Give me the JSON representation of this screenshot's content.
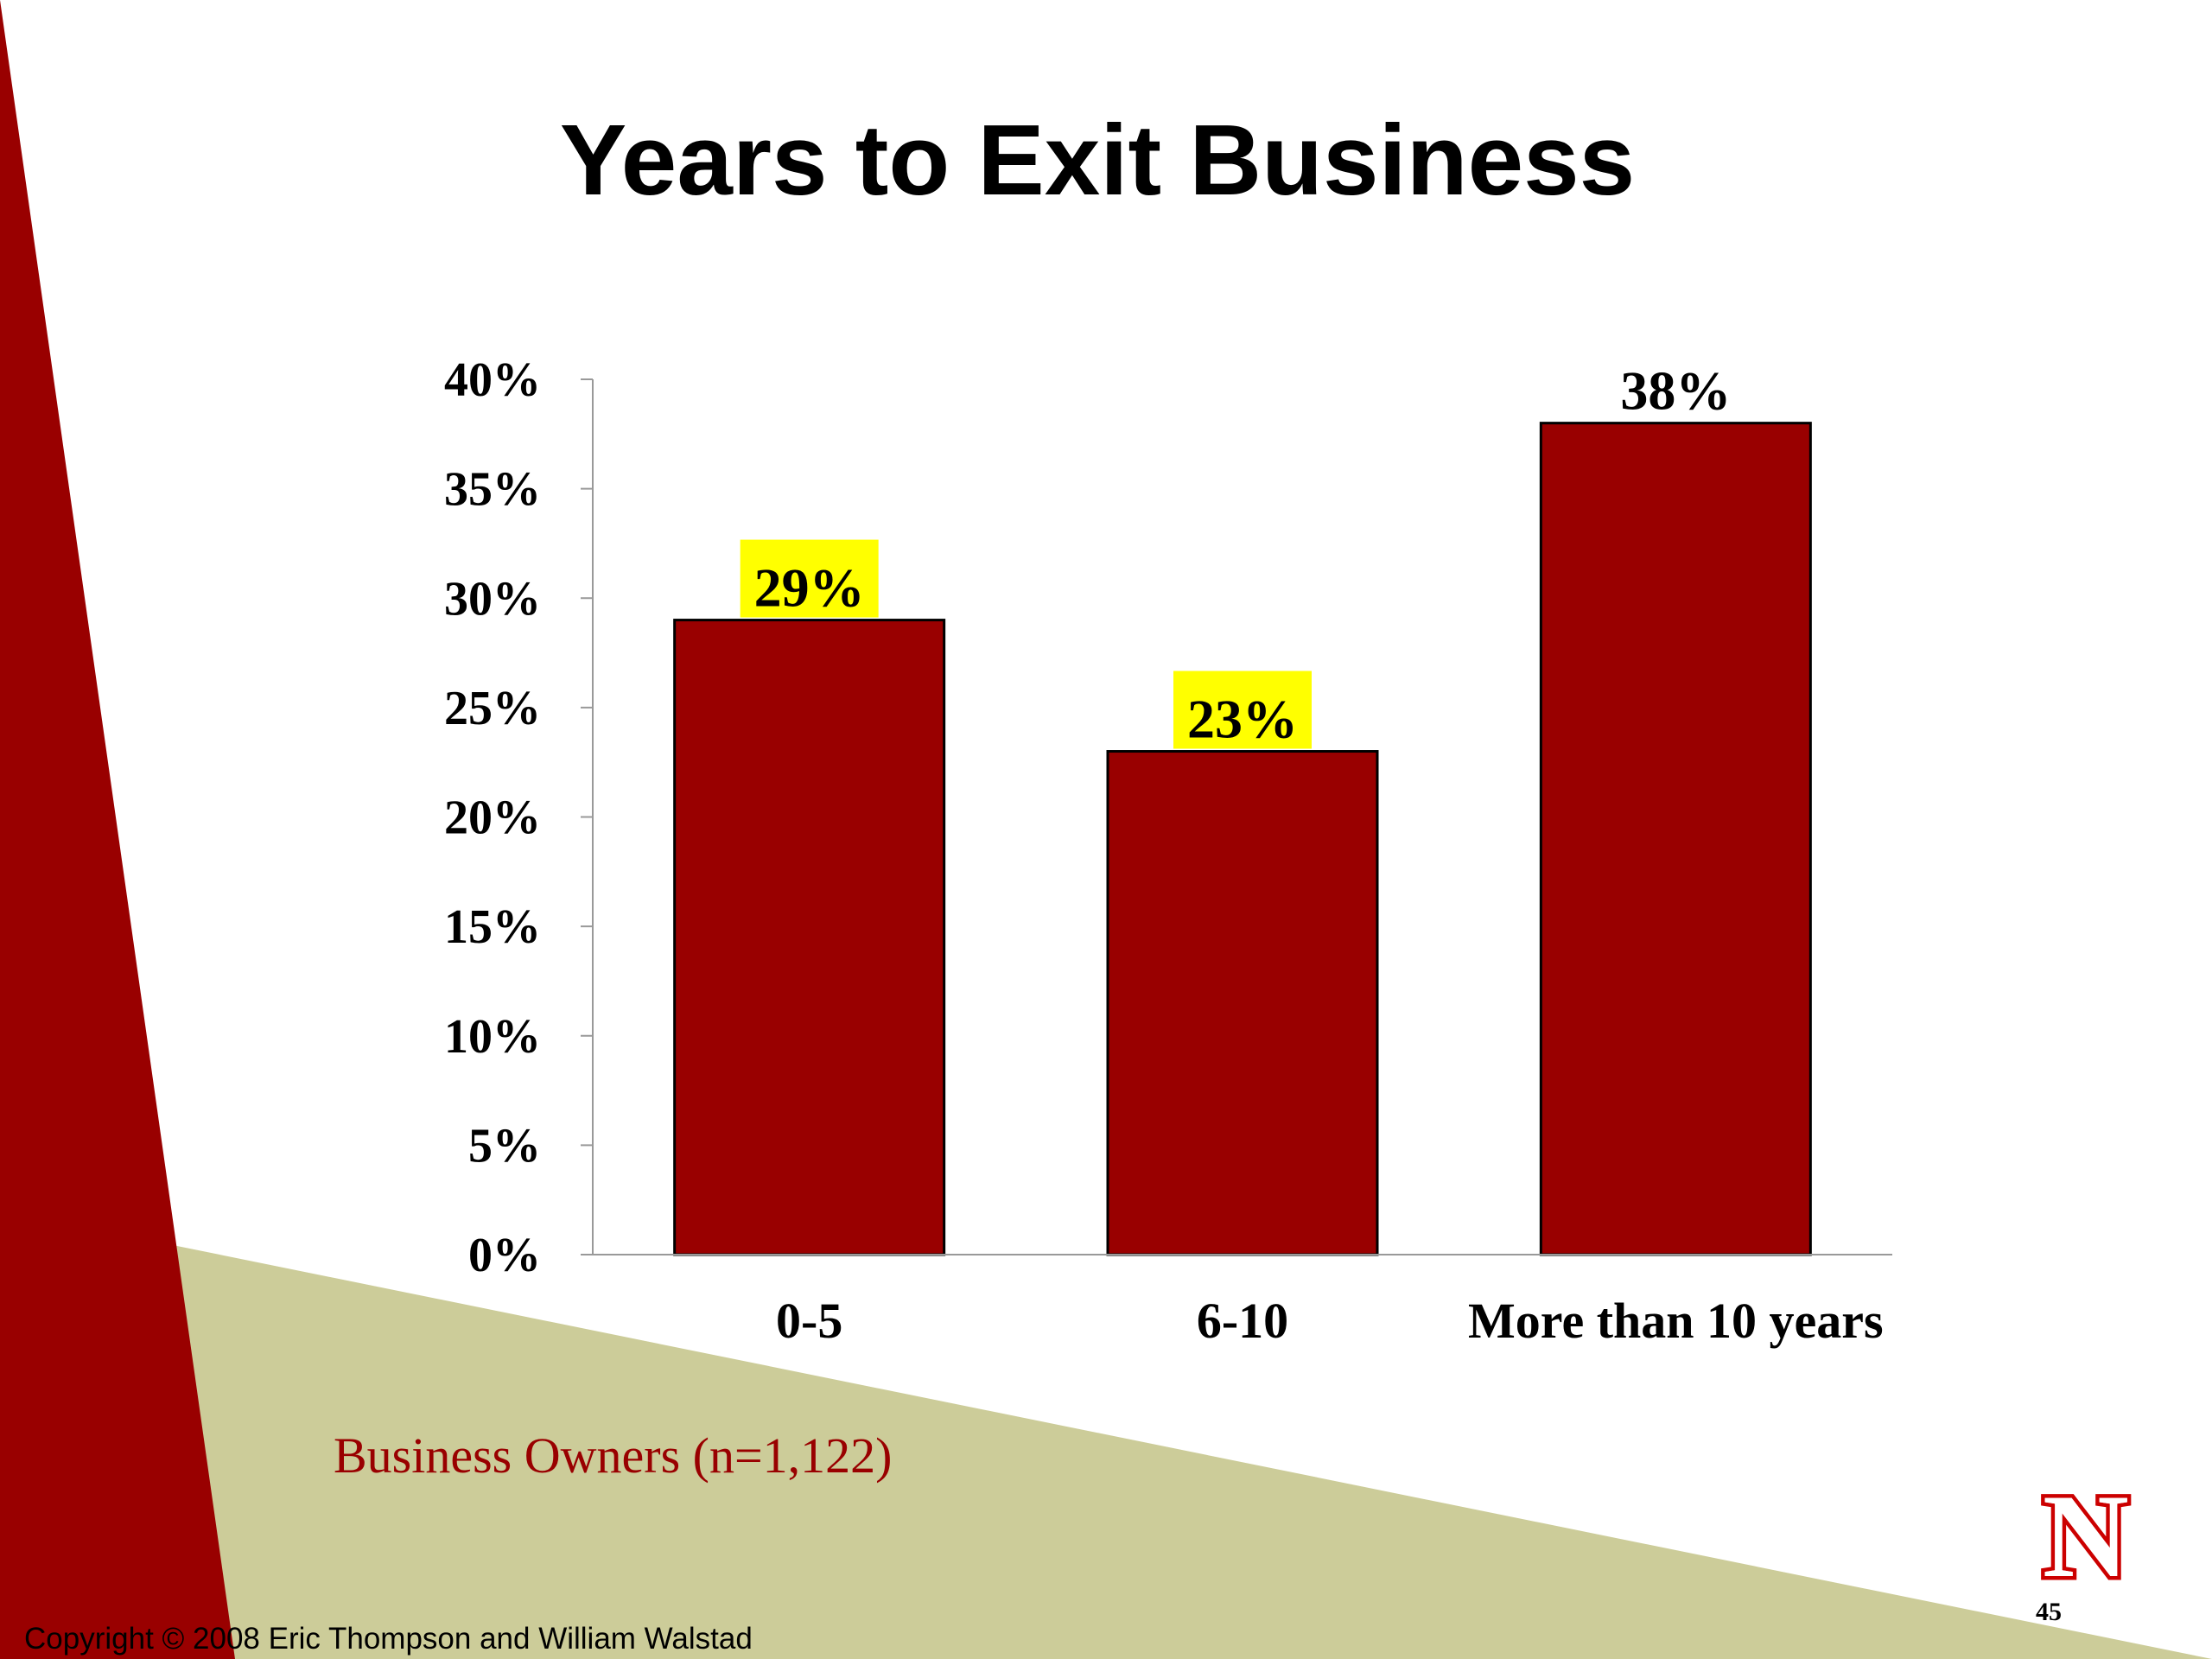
{
  "slide": {
    "title": "Years to Exit Business",
    "sample_label": "Business Owners (n=1,122)",
    "copyright": "Copyright © 2008 Eric Thompson and William Walstad",
    "slide_number": "45",
    "logo_letter": "N"
  },
  "colors": {
    "bar": "#990000",
    "highlight": "#ffff00",
    "left_band": "#990000",
    "bottom_band": "#cccc99",
    "sample_label": "#990000"
  },
  "chart_data": {
    "type": "bar",
    "title": "Years to Exit Business",
    "xlabel": "",
    "ylabel": "",
    "categories": [
      "0-5",
      "6-10",
      "More than 10 years"
    ],
    "values": [
      29,
      23,
      38
    ],
    "data_labels": [
      "29%",
      "23%",
      "38%"
    ],
    "highlighted_labels": [
      true,
      true,
      false
    ],
    "ylim": [
      0,
      40
    ],
    "yticks": [
      0,
      5,
      10,
      15,
      20,
      25,
      30,
      35,
      40
    ],
    "ytick_labels": [
      "0%",
      "5%",
      "10%",
      "15%",
      "20%",
      "25%",
      "30%",
      "35%",
      "40%"
    ],
    "grid": false,
    "legend": "none"
  }
}
